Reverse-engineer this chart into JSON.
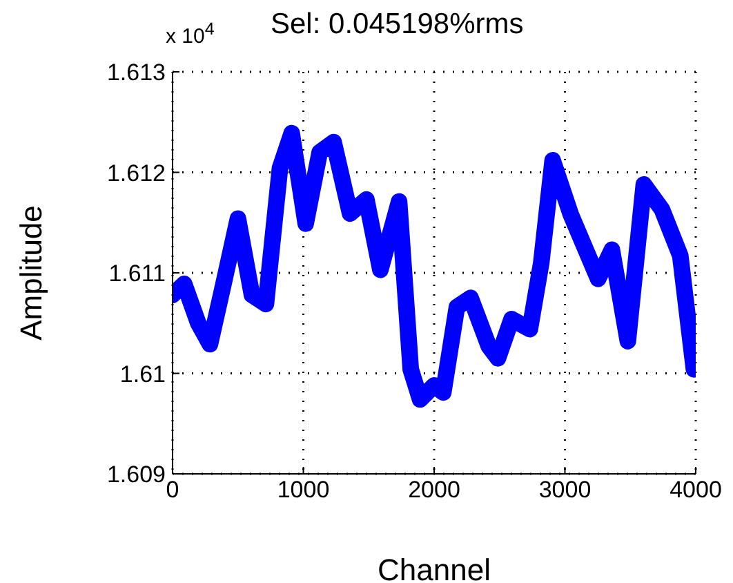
{
  "chart_data": {
    "type": "line",
    "title": "Sel: 0.045198%rms",
    "xlabel": "Channel",
    "ylabel": "Amplitude",
    "annotations": [
      "x 10$^{4}$"
    ],
    "x": [
      0,
      89,
      196,
      286,
      393,
      500,
      607,
      714,
      821,
      911,
      1018,
      1125,
      1232,
      1357,
      1482,
      1589,
      1732,
      1821,
      1893,
      2000,
      2070,
      2174,
      2279,
      2418,
      2488,
      2592,
      2732,
      2819,
      2906,
      3045,
      3185,
      3254,
      3359,
      3481,
      3603,
      3742,
      3882,
      3986
    ],
    "series": [
      {
        "color": "#0000ff",
        "values": [
          1.61078,
          1.61089,
          1.6105,
          1.61029,
          1.61091,
          1.61154,
          1.61078,
          1.61069,
          1.61204,
          1.61239,
          1.61149,
          1.6122,
          1.6123,
          1.61159,
          1.61173,
          1.61103,
          1.61171,
          1.61004,
          1.60974,
          1.60988,
          1.60981,
          1.61066,
          1.61075,
          1.61027,
          1.61015,
          1.61054,
          1.61044,
          1.6111,
          1.61212,
          1.61158,
          1.61115,
          1.61094,
          1.61123,
          1.61032,
          1.61188,
          1.61163,
          1.61117,
          1.61004
        ]
      }
    ],
    "xlim": [
      0,
      4000
    ],
    "xticks": [
      0,
      1000,
      2000,
      3000,
      4000
    ],
    "ylim": [
      1.609,
      1.613
    ],
    "yticks": [
      1.609,
      1.61,
      1.611,
      1.612,
      1.613
    ],
    "grid": true
  }
}
